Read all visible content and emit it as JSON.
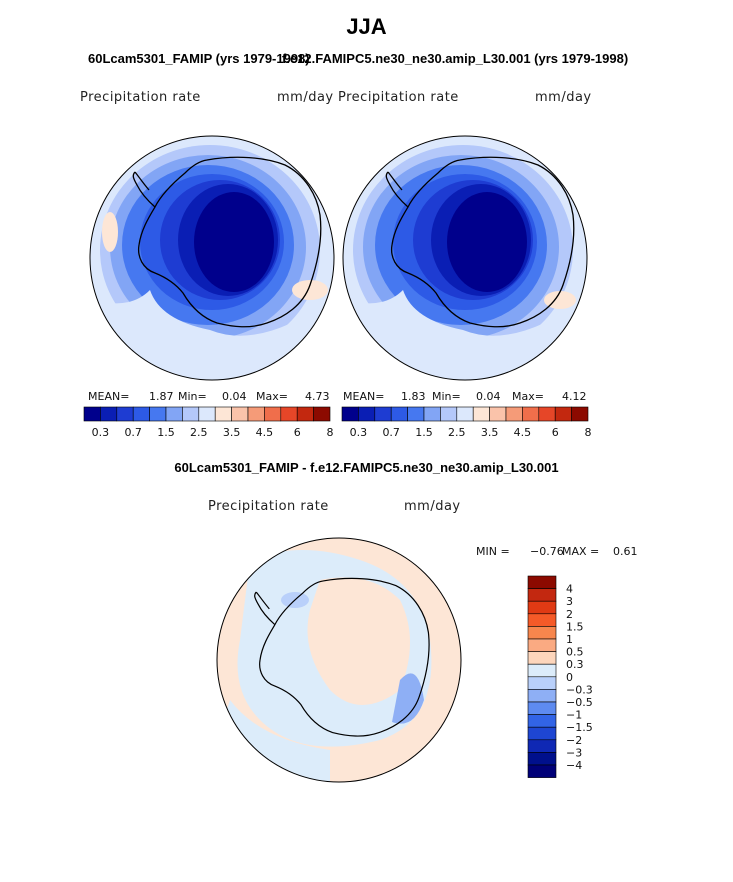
{
  "figure": {
    "season": "JJA",
    "left_panel_title": "60Lcam5301_FAMIP (yrs 1979-1998)",
    "right_panel_title": "f.e12.FAMIPC5.ne30_ne30.amip_L30.001 (yrs 1979-1998)",
    "diff_title": "60Lcam5301_FAMIP - f.e12.FAMIPC5.ne30_ne30.amip_L30.001"
  },
  "panels": {
    "left": {
      "variable": "Precipitation rate",
      "units": "mm/day",
      "stats": {
        "mean_label": "MEAN=",
        "mean": "1.87",
        "min_label": "Min=",
        "min": "0.04",
        "max_label": "Max=",
        "max": "4.73"
      }
    },
    "right": {
      "variable": "Precipitation rate",
      "units": "mm/day",
      "stats": {
        "mean_label": "MEAN=",
        "mean": "1.83",
        "min_label": "Min=",
        "min": "0.04",
        "max_label": "Max=",
        "max": "4.12"
      }
    },
    "diff": {
      "variable": "Precipitation rate",
      "units": "mm/day",
      "stats": {
        "min_label": "MIN =",
        "min": "−0.76",
        "max_label": "MAX =",
        "max": "0.61"
      }
    }
  },
  "colorbar_horizontal": {
    "colors": [
      "#00008c",
      "#0a1eb4",
      "#1e3cd2",
      "#2d5ae6",
      "#4678f0",
      "#82a5f5",
      "#b4c8fa",
      "#dce8fc",
      "#fde6d6",
      "#fac3aa",
      "#f59b78",
      "#f06e4b",
      "#e64628",
      "#c3280f",
      "#8c0a00"
    ],
    "tick_labels": [
      "0.3",
      "0.7",
      "1.5",
      "2.5",
      "3.5",
      "4.5",
      "6",
      "8"
    ]
  },
  "colorbar_vertical": {
    "colors_top_to_bottom": [
      "#8c0a00",
      "#c32810",
      "#e03a14",
      "#f55a28",
      "#f7864d",
      "#faaa82",
      "#fdd6bc",
      "#dcecfa",
      "#b9d0fa",
      "#8eaff5",
      "#5e8bf0",
      "#3264e6",
      "#1e46d2",
      "#0f28b4",
      "#00108c",
      "#000078"
    ],
    "tick_labels_top_to_bottom": [
      "4",
      "3",
      "2",
      "1.5",
      "1",
      "0.5",
      "0.3",
      "0",
      "−0.3",
      "−0.5",
      "−1",
      "−1.5",
      "−2",
      "−3",
      "−4"
    ]
  }
}
